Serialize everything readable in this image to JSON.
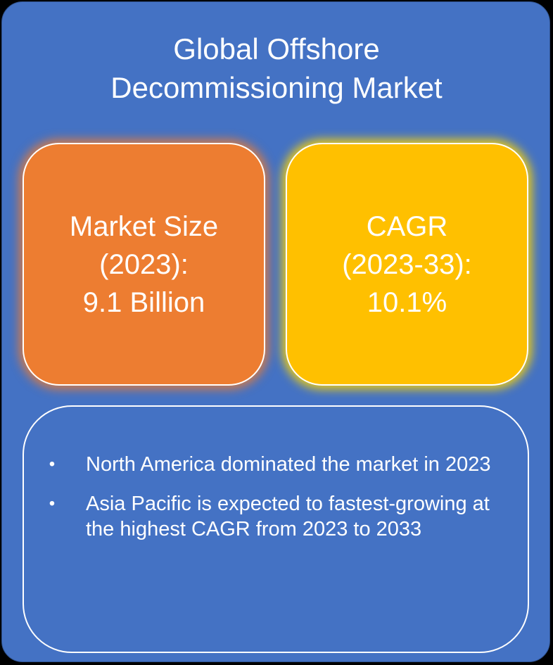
{
  "title": {
    "line1": "Global Offshore",
    "line2": "Decommissioning Market"
  },
  "market_size": {
    "line1": "Market Size",
    "line2": "(2023):",
    "line3": "9.1 Billion"
  },
  "cagr": {
    "line1": "CAGR",
    "line2": "(2023-33):",
    "line3": "10.1%"
  },
  "highlights": [
    {
      "bullet": "•",
      "text": "North America dominated the market in 2023"
    },
    {
      "bullet": "•",
      "text": "Asia Pacific is expected to fastest-growing at the highest CAGR from 2023 to 2033"
    }
  ],
  "colors": {
    "background": "#4472c4",
    "market_size_card": "#ed7d31",
    "cagr_card": "#ffc000",
    "text": "#ffffff"
  }
}
